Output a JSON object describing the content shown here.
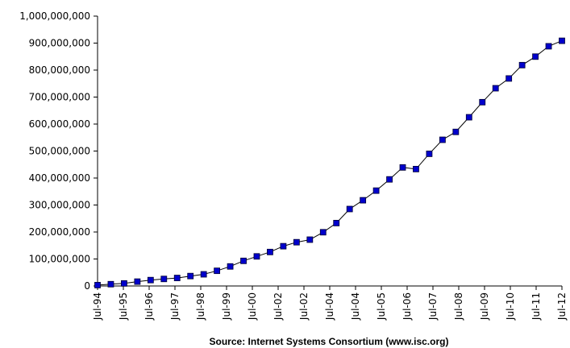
{
  "chart_data": {
    "type": "line",
    "title": "",
    "xlabel": "",
    "ylabel": "",
    "ylim": [
      0,
      1000000000
    ],
    "y_ticks": [
      "0",
      "100,000,000",
      "200,000,000",
      "300,000,000",
      "400,000,000",
      "500,000,000",
      "600,000,000",
      "700,000,000",
      "800,000,000",
      "900,000,000",
      "1,000,000,000"
    ],
    "x_tick_labels": [
      "Jul-94",
      "Jul-95",
      "Jul-96",
      "Jul-97",
      "Jul-98",
      "Jul-99",
      "Jul-00",
      "Jul-02",
      "Jul-02",
      "Jul-04",
      "Jul-04",
      "Jul-05",
      "Jul-06",
      "Jul-07",
      "Jul-08",
      "Jul-09",
      "Jul-10",
      "Jul-11",
      "Jul-12"
    ],
    "grid": false,
    "legend": "none",
    "colors": {
      "line": "#000000",
      "marker_fill": "#0000cc",
      "marker_edge": "#000033"
    },
    "series": [
      {
        "values": [
          3212000,
          6642000,
          9472000,
          16146000,
          21819000,
          26053000,
          29670000,
          36739000,
          43230000,
          56218000,
          72398000,
          93047785,
          109574429,
          125888197,
          147344723,
          162128493,
          171638297,
          199138656,
          233101481,
          285139107,
          317646084,
          353284187,
          394991609,
          439286364,
          433193199,
          489774269,
          541677360,
          570937778,
          625226456,
          681064561,
          732740444,
          768913036,
          818374269,
          849869781,
          888239420,
          908585739
        ]
      }
    ]
  },
  "source_note": "Source: Internet Systems Consortium (www.isc.org)"
}
